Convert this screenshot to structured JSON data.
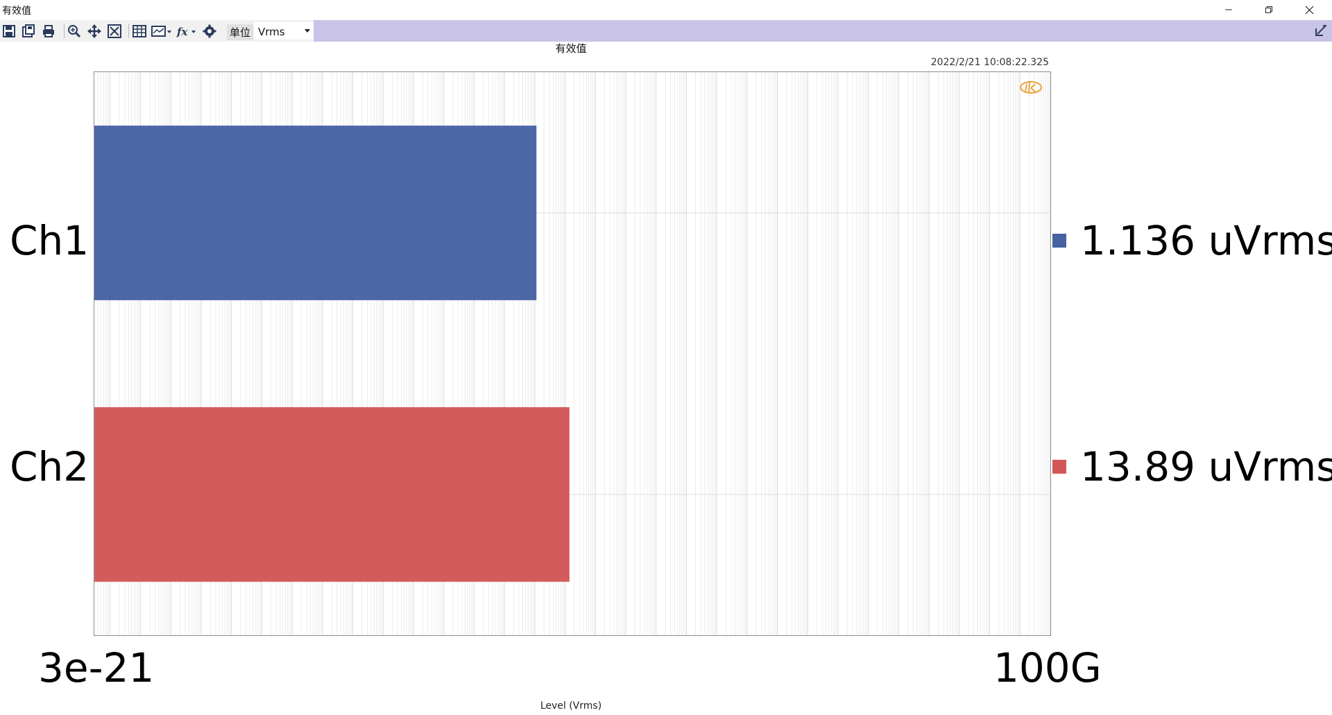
{
  "window": {
    "title": "有效值"
  },
  "toolbar": {
    "icons": [
      "save-icon",
      "save-as-icon",
      "print-icon",
      "zoom-icon",
      "pan-icon",
      "fit-icon",
      "table-icon",
      "chart-type-icon",
      "function-icon",
      "settings-icon"
    ],
    "unit_label": "单位",
    "unit_value": "Vrms",
    "dock_icon": "dock-icon"
  },
  "chart": {
    "title": "有效值",
    "timestamp": "2022/2/21 10:08:22.325",
    "x_min_label": "3e-21",
    "x_max_label": "100G",
    "xlabel": "Level (Vrms)",
    "legend": [
      {
        "name": "Ch1",
        "value_text": "1.136  uVrms",
        "color": "#4662a3"
      },
      {
        "name": "Ch2",
        "value_text": "13.89  uVrms",
        "color": "#d35657"
      }
    ]
  },
  "chart_data": {
    "type": "bar",
    "orientation": "horizontal",
    "categories": [
      "Ch1",
      "Ch2"
    ],
    "values": [
      1.136e-06,
      1.389e-05
    ],
    "units": "Vrms",
    "xscale": "log",
    "xlim": [
      3e-21,
      100000000000.0
    ],
    "title": "有效值",
    "xlabel": "Level (Vrms)",
    "ylabel": "",
    "grid": true,
    "colors": [
      "#4662a3",
      "#d35657"
    ]
  }
}
